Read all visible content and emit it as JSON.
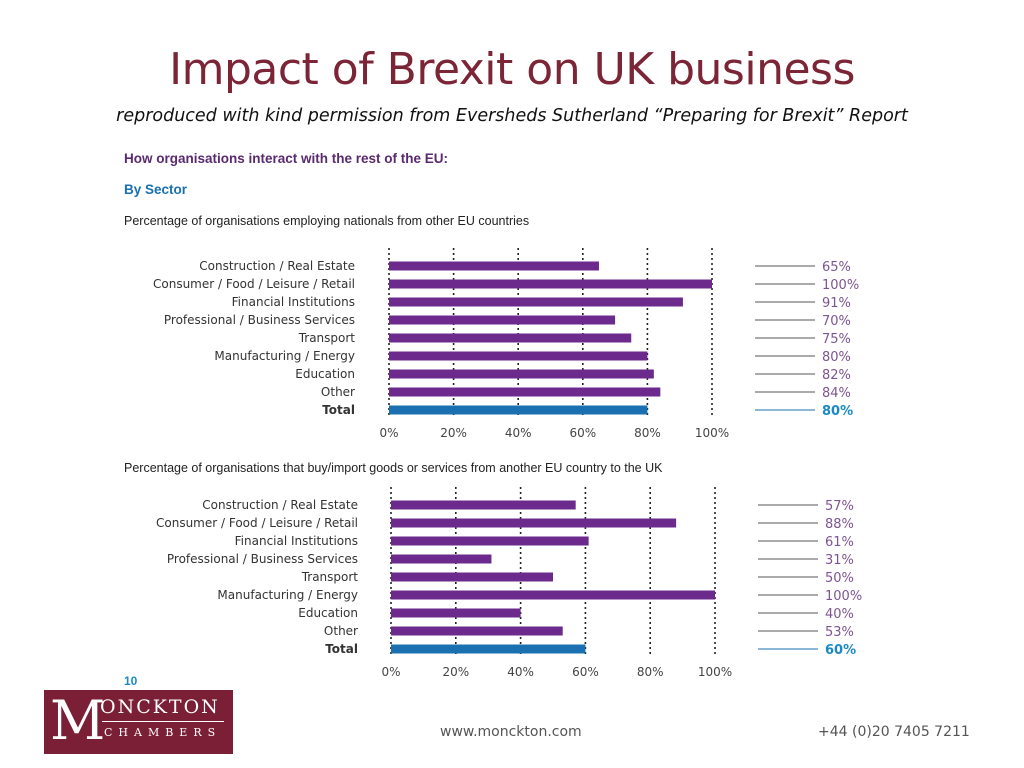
{
  "slide": {
    "title": "Impact of Brexit on UK business",
    "subtitle": "reproduced with kind permission from Eversheds Sutherland “Preparing for Brexit” Report",
    "footer_website": "www.monckton.com",
    "footer_phone": "+44 (0)20 7405 7211",
    "logo": {
      "big_letter": "M",
      "top_text": "ONCKTON",
      "bottom_text": "CHAMBERS"
    }
  },
  "report": {
    "heading": "How organisations interact with the rest of the EU:",
    "subheading": "By Sector",
    "page_number": "10"
  },
  "colors": {
    "bar": "#6b2a8c",
    "total": "#1a70b0",
    "label": "#7d5591",
    "total_label": "#1a8ac6",
    "heading": "#5a2a6e"
  },
  "chart_data": [
    {
      "type": "bar",
      "orientation": "horizontal",
      "title": "Percentage of organisations employing nationals from other EU countries",
      "categories": [
        "Construction / Real Estate",
        "Consumer / Food / Leisure / Retail",
        "Financial Institutions",
        "Professional / Business Services",
        "Transport",
        "Manufacturing / Energy",
        "Education",
        "Other",
        "Total"
      ],
      "values": [
        65,
        100,
        91,
        70,
        75,
        80,
        82,
        84,
        80
      ],
      "value_labels": [
        "65%",
        "100%",
        "91%",
        "70%",
        "75%",
        "80%",
        "82%",
        "84%",
        "80%"
      ],
      "ticks": [
        "0%",
        "20%",
        "40%",
        "60%",
        "80%",
        "100%"
      ],
      "xlim": [
        0,
        100
      ],
      "highlight_category": "Total"
    },
    {
      "type": "bar",
      "orientation": "horizontal",
      "title": "Percentage of organisations that buy/import goods or services from another EU country to the UK",
      "categories": [
        "Construction / Real Estate",
        "Consumer / Food / Leisure / Retail",
        "Financial Institutions",
        "Professional / Business Services",
        "Transport",
        "Manufacturing / Energy",
        "Education",
        "Other",
        "Total"
      ],
      "values": [
        57,
        88,
        61,
        31,
        50,
        100,
        40,
        53,
        60
      ],
      "value_labels": [
        "57%",
        "88%",
        "61%",
        "31%",
        "50%",
        "100%",
        "40%",
        "53%",
        "60%"
      ],
      "ticks": [
        "0%",
        "20%",
        "40%",
        "60%",
        "80%",
        "100%"
      ],
      "xlim": [
        0,
        100
      ],
      "highlight_category": "Total"
    }
  ]
}
